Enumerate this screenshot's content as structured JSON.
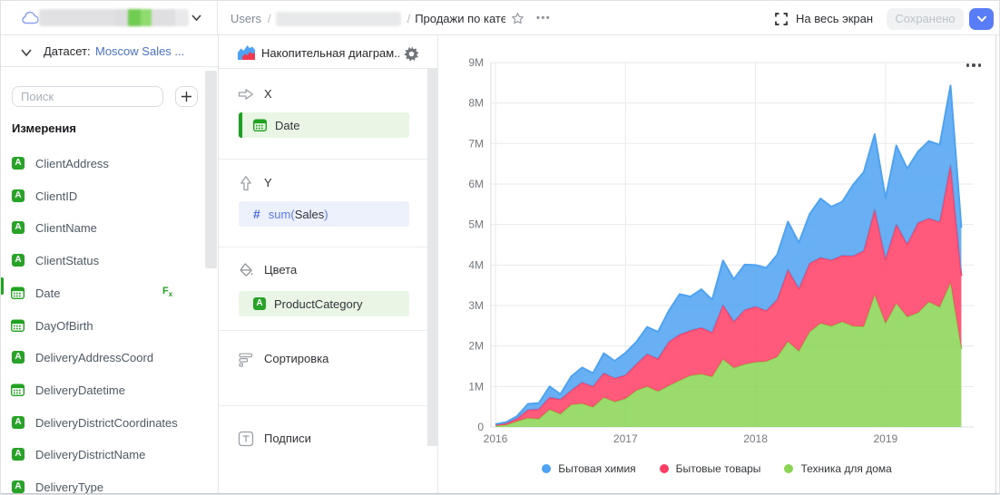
{
  "topbar": {
    "breadcrumb": {
      "root": "Users",
      "separator": "/",
      "current": "Продажи по катег"
    },
    "fullscreen_label": "На весь экран",
    "saved_button_label": "Сохранено",
    "accent_color": "#587df6"
  },
  "left_panel": {
    "dataset_label": "Датасет:",
    "dataset_name": "Moscow Sales ...",
    "search_placeholder": "Поиск",
    "add_button_label": "+",
    "dimensions_heading": "Измерения",
    "fields": [
      {
        "name": "ClientAddress",
        "type": "string"
      },
      {
        "name": "ClientID",
        "type": "string"
      },
      {
        "name": "ClientName",
        "type": "string"
      },
      {
        "name": "ClientStatus",
        "type": "string"
      },
      {
        "name": "Date",
        "type": "date",
        "active": true,
        "has_formula": true
      },
      {
        "name": "DayOfBirth",
        "type": "date"
      },
      {
        "name": "DeliveryAddressCoord",
        "type": "string"
      },
      {
        "name": "DeliveryDatetime",
        "type": "date"
      },
      {
        "name": "DeliveryDistrictCoordinates",
        "type": "string"
      },
      {
        "name": "DeliveryDistrictName",
        "type": "string"
      },
      {
        "name": "DeliveryType",
        "type": "string"
      }
    ]
  },
  "viz_panel": {
    "chart_type_title": "Накопительная диаграм...",
    "sections": [
      {
        "label": "X",
        "icon": "arrow-right",
        "chips": [
          {
            "text": "Date",
            "field_type": "date",
            "color": "green",
            "accent_bar": true
          }
        ]
      },
      {
        "label": "Y",
        "icon": "arrow-up",
        "chips": [
          {
            "fn": "sum(",
            "text": "Sales",
            "fn_close": ")",
            "field_type": "measure",
            "color": "blue"
          }
        ]
      },
      {
        "label": "Цвета",
        "icon": "paint-bucket",
        "chips": [
          {
            "text": "ProductCategory",
            "field_type": "string",
            "color": "green"
          }
        ]
      },
      {
        "label": "Сортировка",
        "icon": "sort",
        "chips": []
      },
      {
        "label": "Подписи",
        "icon": "label-t",
        "chips": []
      }
    ]
  },
  "chart_data": {
    "type": "area",
    "stacked": true,
    "x": [
      "2016-01",
      "2016-02",
      "2016-03",
      "2016-04",
      "2016-05",
      "2016-06",
      "2016-07",
      "2016-08",
      "2016-09",
      "2016-10",
      "2016-11",
      "2016-12",
      "2017-01",
      "2017-02",
      "2017-03",
      "2017-04",
      "2017-05",
      "2017-06",
      "2017-07",
      "2017-08",
      "2017-09",
      "2017-10",
      "2017-11",
      "2017-12",
      "2018-01",
      "2018-02",
      "2018-03",
      "2018-04",
      "2018-05",
      "2018-06",
      "2018-07",
      "2018-08",
      "2018-09",
      "2018-10",
      "2018-11",
      "2018-12",
      "2019-01",
      "2019-02",
      "2019-03",
      "2019-04",
      "2019-05",
      "2019-06",
      "2019-07",
      "2019-08"
    ],
    "x_ticks": [
      "2016",
      "2017",
      "2018",
      "2019"
    ],
    "y_ticks": [
      "0",
      "1M",
      "2M",
      "3M",
      "4M",
      "5M",
      "6M",
      "7M",
      "8M",
      "9M"
    ],
    "ylim": [
      0,
      9000000
    ],
    "grid": true,
    "legend_position": "bottom",
    "series": [
      {
        "name": "Бытовая химия",
        "color": "#4DA2F1",
        "values": [
          20000,
          30000,
          60000,
          150000,
          150000,
          270000,
          130000,
          350000,
          370000,
          330000,
          490000,
          430000,
          550000,
          550000,
          670000,
          670000,
          770000,
          1000000,
          840000,
          950000,
          810000,
          1100000,
          1050000,
          1120000,
          1030000,
          1060000,
          1110000,
          1190000,
          1140000,
          1220000,
          1460000,
          1320000,
          1330000,
          1760000,
          1950000,
          1860000,
          1510000,
          1950000,
          1870000,
          1760000,
          1910000,
          1910000,
          1970000,
          1190000
        ]
      },
      {
        "name": "Бытовые товары",
        "color": "#FF3D64",
        "values": [
          20000,
          40000,
          70000,
          200000,
          240000,
          300000,
          360000,
          350000,
          520000,
          510000,
          600000,
          580000,
          580000,
          650000,
          800000,
          800000,
          1080000,
          1130000,
          1110000,
          1140000,
          1090000,
          1340000,
          1140000,
          1340000,
          1370000,
          1250000,
          1410000,
          1770000,
          1540000,
          1690000,
          1620000,
          1630000,
          1630000,
          1730000,
          1870000,
          2110000,
          1580000,
          1950000,
          1790000,
          2220000,
          2060000,
          2100000,
          2900000,
          1800000
        ]
      },
      {
        "name": "Техника для дома",
        "color": "#8AD554",
        "values": [
          30000,
          50000,
          140000,
          220000,
          200000,
          430000,
          320000,
          550000,
          580000,
          490000,
          730000,
          620000,
          700000,
          900000,
          1000000,
          880000,
          1020000,
          1150000,
          1270000,
          1310000,
          1240000,
          1670000,
          1460000,
          1550000,
          1600000,
          1620000,
          1730000,
          2110000,
          1870000,
          2350000,
          2560000,
          2490000,
          2600000,
          2490000,
          2480000,
          3260000,
          2560000,
          3050000,
          2720000,
          2820000,
          3090000,
          2960000,
          3560000,
          1930000
        ]
      }
    ],
    "note": "stacked bottom-to-top: last series is bottom layer; values in sales units, axis in millions (M)"
  }
}
